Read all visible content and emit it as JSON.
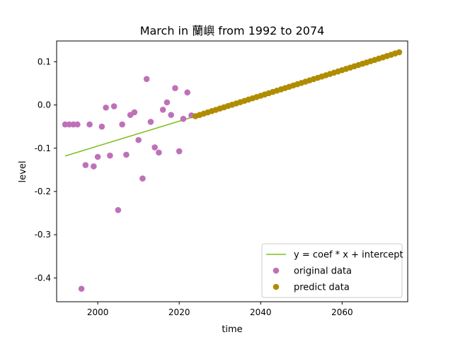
{
  "chart_data": {
    "type": "scatter",
    "title": "March in 蘭嶼 from 1992 to 2074",
    "xlabel": "time",
    "ylabel": "level",
    "xlim": [
      1989.9,
      2076.1
    ],
    "ylim": [
      -0.455,
      0.148
    ],
    "xticks": [
      2000,
      2020,
      2040,
      2060
    ],
    "yticks": [
      0.1,
      0.0,
      -0.1,
      -0.2,
      -0.3,
      -0.4
    ],
    "ytick_labels": [
      "0.1",
      "0.0",
      "-0.1",
      "-0.2",
      "-0.3",
      "-0.4"
    ],
    "grid": false,
    "legend_position": "lower-right",
    "legend": [
      {
        "label": "y = coef * x + intercept",
        "kind": "line",
        "color": "#7fbf1f"
      },
      {
        "label": "original data",
        "kind": "marker",
        "color": "#bf71b8"
      },
      {
        "label": "predict data",
        "kind": "marker",
        "color": "#b08c00"
      }
    ],
    "series": [
      {
        "name": "y = coef * x + intercept",
        "type": "line",
        "color": "#7fbf1f",
        "x": [
          1992,
          2024
        ],
        "y": [
          -0.118,
          -0.026
        ]
      },
      {
        "name": "original data",
        "type": "scatter",
        "color": "#bf71b8",
        "x": [
          1992,
          1993,
          1994,
          1995,
          1996,
          1997,
          1998,
          1999,
          2000,
          2001,
          2002,
          2003,
          2004,
          2005,
          2006,
          2007,
          2008,
          2009,
          2010,
          2011,
          2012,
          2013,
          2014,
          2015,
          2016,
          2017,
          2018,
          2019,
          2020,
          2021,
          2022,
          2023
        ],
        "y": [
          -0.045,
          -0.045,
          -0.045,
          -0.045,
          -0.425,
          -0.139,
          -0.045,
          -0.142,
          -0.12,
          -0.05,
          -0.006,
          -0.117,
          -0.003,
          -0.243,
          -0.045,
          -0.115,
          -0.023,
          -0.017,
          -0.081,
          -0.17,
          0.06,
          -0.039,
          -0.098,
          -0.11,
          -0.011,
          0.006,
          -0.023,
          0.039,
          -0.107,
          -0.032,
          0.029,
          -0.024
        ]
      },
      {
        "name": "predict data",
        "type": "scatter",
        "color": "#b08c00",
        "x_start": 2024,
        "x_end": 2074,
        "y_start": -0.026,
        "y_end": 0.122
      }
    ]
  }
}
